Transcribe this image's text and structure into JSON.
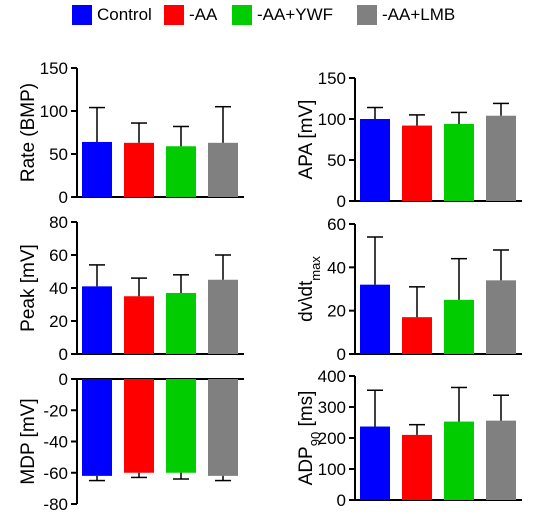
{
  "colors": {
    "Control": "#0000ff",
    "-AA": "#ff0000",
    "-AA+YWF": "#00cc00",
    "-AA+LMB": "#808080"
  },
  "legend": [
    "Control",
    "-AA",
    "-AA+YWF",
    "-AA+LMB"
  ],
  "chart_data": [
    {
      "type": "bar",
      "ylabel": "Rate (BMP)",
      "ylabel_sub": "",
      "ylim": [
        0,
        150
      ],
      "yticks": [
        0,
        50,
        100,
        150
      ],
      "categories": [
        "Control",
        "-AA",
        "-AA+YWF",
        "-AA+LMB"
      ],
      "values": [
        64,
        63,
        59,
        63
      ],
      "errors": [
        40,
        23,
        23,
        42
      ],
      "error_direction": "up"
    },
    {
      "type": "bar",
      "ylabel": "APA  [mV]",
      "ylabel_sub": "",
      "ylim": [
        0,
        150
      ],
      "yticks": [
        0,
        50,
        100,
        150
      ],
      "categories": [
        "Control",
        "-AA",
        "-AA+YWF",
        "-AA+LMB"
      ],
      "values": [
        100,
        92,
        94,
        104
      ],
      "errors": [
        14,
        13,
        14,
        15
      ],
      "error_direction": "up"
    },
    {
      "type": "bar",
      "ylabel": "Peak [mV]",
      "ylabel_sub": "",
      "ylim": [
        0,
        80
      ],
      "yticks": [
        0,
        20,
        40,
        60,
        80
      ],
      "categories": [
        "Control",
        "-AA",
        "-AA+YWF",
        "-AA+LMB"
      ],
      "values": [
        41,
        35,
        37,
        45
      ],
      "errors": [
        13,
        11,
        11,
        15
      ],
      "error_direction": "up"
    },
    {
      "type": "bar",
      "ylabel": "dv\\dt",
      "ylabel_sub": "max",
      "ylim": [
        0,
        60
      ],
      "yticks": [
        0,
        20,
        40,
        60
      ],
      "categories": [
        "Control",
        "-AA",
        "-AA+YWF",
        "-AA+LMB"
      ],
      "values": [
        32,
        17,
        25,
        34
      ],
      "errors": [
        22,
        14,
        19,
        14
      ],
      "error_direction": "up"
    },
    {
      "type": "bar",
      "ylabel": "MDP [mV]",
      "ylabel_sub": "",
      "ylim": [
        -80,
        0
      ],
      "yticks": [
        0,
        -20,
        -40,
        -60,
        -80
      ],
      "categories": [
        "Control",
        "-AA",
        "-AA+YWF",
        "-AA+LMB"
      ],
      "values": [
        -62,
        -60,
        -60,
        -62
      ],
      "errors": [
        3,
        3,
        4,
        3
      ],
      "error_direction": "down"
    },
    {
      "type": "bar",
      "ylabel": "ADP",
      "ylabel_sub": "90",
      "ylabel_suffix": " [ms]",
      "ylim": [
        0,
        400
      ],
      "yticks": [
        0,
        100,
        200,
        300,
        400
      ],
      "categories": [
        "Control",
        "-AA",
        "-AA+YWF",
        "-AA+LMB"
      ],
      "values": [
        237,
        210,
        253,
        256
      ],
      "errors": [
        117,
        33,
        110,
        82
      ],
      "error_direction": "up"
    }
  ]
}
